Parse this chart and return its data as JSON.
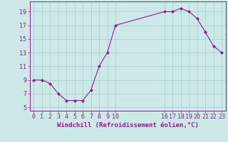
{
  "x": [
    0,
    1,
    2,
    3,
    4,
    5,
    6,
    7,
    8,
    9,
    10,
    16,
    17,
    18,
    19,
    20,
    21,
    22,
    23
  ],
  "y": [
    9,
    9,
    8.5,
    7,
    6,
    6,
    6,
    7.5,
    11,
    13,
    17,
    19,
    19,
    19.5,
    19,
    18,
    16,
    14,
    13
  ],
  "line_color": "#882288",
  "marker": "D",
  "marker_size": 2.0,
  "bg_color": "#cce8e8",
  "grid_color": "#aacccc",
  "xlabel": "Windchill (Refroidissement éolien,°C)",
  "xticks": [
    0,
    1,
    2,
    3,
    4,
    5,
    6,
    7,
    8,
    9,
    10,
    16,
    17,
    18,
    19,
    20,
    21,
    22,
    23
  ],
  "yticks": [
    5,
    7,
    9,
    11,
    13,
    15,
    17,
    19
  ],
  "ylim": [
    4.5,
    20.5
  ],
  "xlim": [
    -0.5,
    23.5
  ],
  "tick_fontsize": 6.0,
  "xlabel_fontsize": 6.5
}
